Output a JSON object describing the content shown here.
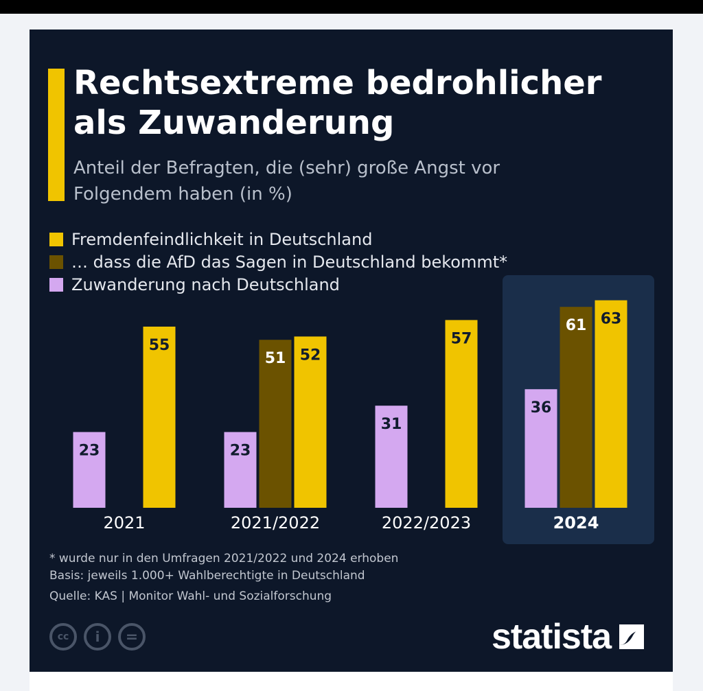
{
  "title": "Rechtsextreme bedrohlicher als Zuwanderung",
  "subtitle": "Anteil der Befragten, die (sehr) große Angst vor Folgendem haben (in %)",
  "legend": [
    {
      "label": "Fremdenfeindlichkeit in Deutschland",
      "color": "#f0c400"
    },
    {
      "label": "… dass die AfD das Sagen in Deutschland bekommt*",
      "color": "#6b5200"
    },
    {
      "label": "Zuwanderung nach Deutschland",
      "color": "#d4a8f0"
    }
  ],
  "chart_data": {
    "type": "bar",
    "categories": [
      "2021",
      "2021/2022",
      "2022/2023",
      "2024"
    ],
    "highlighted_category": "2024",
    "series": [
      {
        "name": "Zuwanderung nach Deutschland",
        "color": "#d4a8f0",
        "values": [
          23,
          23,
          31,
          36
        ]
      },
      {
        "name": "… dass die AfD das Sagen in Deutschland bekommt*",
        "color": "#6b5200",
        "values": [
          null,
          51,
          null,
          61
        ]
      },
      {
        "name": "Fremdenfeindlichkeit in Deutschland",
        "color": "#f0c400",
        "values": [
          55,
          52,
          57,
          63
        ]
      }
    ],
    "data_labels": true,
    "grid": false,
    "legend_position": "top-left"
  },
  "footnotes": {
    "note": "* wurde nur in den Umfragen 2021/2022 und 2024 erhoben",
    "basis": "Basis: jeweils 1.000+ Wahlberechtigte in Deutschland",
    "source": "Quelle: KAS | Monitor Wahl- und Sozialforschung"
  },
  "license_icons": [
    "cc-icon",
    "attribution-icon",
    "no-derivatives-icon"
  ],
  "license_glyphs": [
    "cc",
    "i",
    "="
  ],
  "brand": "statista",
  "colors": {
    "background": "#0d1729",
    "accent": "#f0c400",
    "highlight_panel": "#1a2e4a"
  }
}
